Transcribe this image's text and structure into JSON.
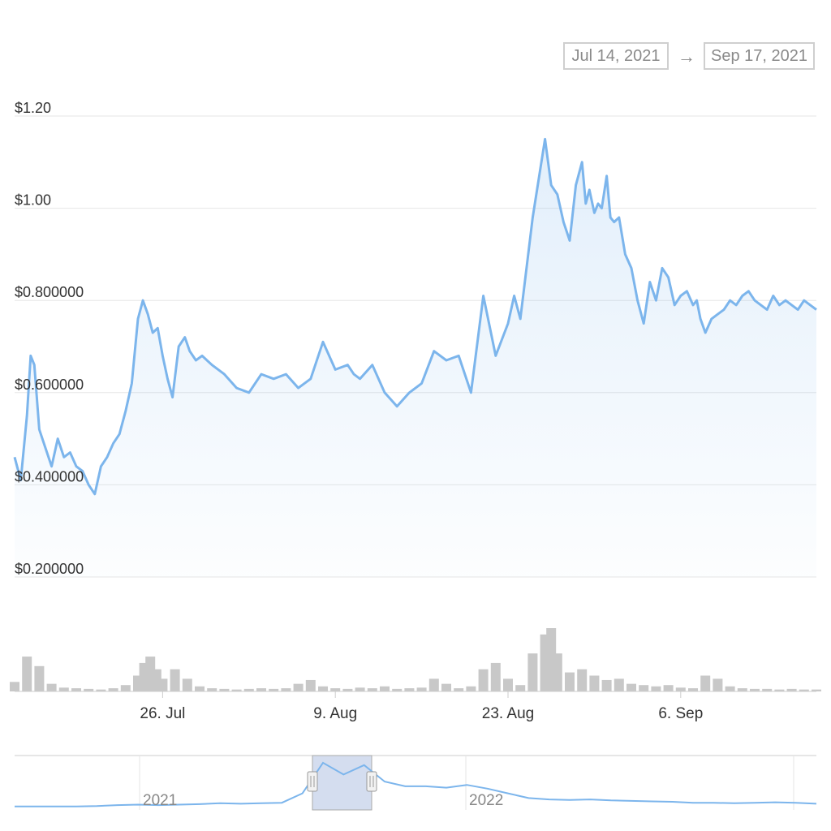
{
  "range": {
    "start": "Jul 14, 2021",
    "arrow": "→",
    "end": "Sep 17, 2021"
  },
  "colors": {
    "line": "#7cb5ec",
    "grid": "#e6e6e6",
    "volume": "#c8c8c8",
    "navigator_mask": "#c6d2ea",
    "text": "#333333",
    "muted": "#888888"
  },
  "chart_data": {
    "type": "line",
    "title": "",
    "xlabel": "",
    "ylabel": "",
    "y_ticks": [
      "$0.200000",
      "$0.400000",
      "$0.600000",
      "$0.800000",
      "$1.00",
      "$1.20"
    ],
    "y_tick_values": [
      0.2,
      0.4,
      0.6,
      0.8,
      1.0,
      1.2
    ],
    "ylim": [
      0.2,
      1.2
    ],
    "x_ticks": [
      "26. Jul",
      "9. Aug",
      "23. Aug",
      "6. Sep"
    ],
    "x_tick_days": [
      12,
      26,
      40,
      54
    ],
    "xlim_days_from_Jul_14": [
      0,
      65
    ],
    "grid": true,
    "series": [
      {
        "name": "",
        "x_day": [
          0,
          0.5,
          1,
          1.3,
          1.6,
          2,
          2.5,
          3,
          3.5,
          4,
          4.5,
          5,
          5.5,
          6,
          6.5,
          7,
          7.5,
          8,
          8.5,
          9,
          9.5,
          10,
          10.4,
          10.8,
          11.2,
          11.6,
          12,
          12.4,
          12.8,
          13.3,
          13.8,
          14.2,
          14.7,
          15.2,
          16,
          17,
          18,
          19,
          20,
          21,
          22,
          23,
          24,
          25,
          26,
          27,
          27.5,
          28,
          29,
          30,
          31,
          32,
          33,
          34,
          35,
          36,
          37,
          38,
          39,
          40,
          40.5,
          41,
          42,
          43,
          43.5,
          44,
          44.5,
          45,
          45.5,
          46,
          46.3,
          46.6,
          47,
          47.3,
          47.6,
          48,
          48.3,
          48.6,
          49,
          49.5,
          50,
          50.5,
          51,
          51.5,
          52,
          52.5,
          53,
          53.5,
          54,
          54.5,
          55,
          55.3,
          55.6,
          56,
          56.5,
          57,
          57.5,
          58,
          58.5,
          59,
          59.5,
          60,
          60.5,
          61,
          61.5,
          62,
          62.5,
          63,
          63.5,
          64,
          64.5,
          65
        ],
        "values": [
          0.46,
          0.41,
          0.55,
          0.68,
          0.66,
          0.52,
          0.48,
          0.44,
          0.5,
          0.46,
          0.47,
          0.44,
          0.43,
          0.4,
          0.38,
          0.44,
          0.46,
          0.49,
          0.51,
          0.56,
          0.62,
          0.76,
          0.8,
          0.77,
          0.73,
          0.74,
          0.68,
          0.63,
          0.59,
          0.7,
          0.72,
          0.69,
          0.67,
          0.68,
          0.66,
          0.64,
          0.61,
          0.6,
          0.64,
          0.63,
          0.64,
          0.61,
          0.63,
          0.71,
          0.65,
          0.66,
          0.64,
          0.63,
          0.66,
          0.6,
          0.57,
          0.6,
          0.62,
          0.69,
          0.67,
          0.68,
          0.6,
          0.81,
          0.68,
          0.75,
          0.81,
          0.76,
          0.98,
          1.15,
          1.05,
          1.03,
          0.97,
          0.93,
          1.05,
          1.1,
          1.01,
          1.04,
          0.99,
          1.01,
          1.0,
          1.07,
          0.98,
          0.97,
          0.98,
          0.9,
          0.87,
          0.8,
          0.75,
          0.84,
          0.8,
          0.87,
          0.85,
          0.79,
          0.81,
          0.82,
          0.79,
          0.8,
          0.76,
          0.73,
          0.76,
          0.77,
          0.78,
          0.8,
          0.79,
          0.81,
          0.82,
          0.8,
          0.79,
          0.78,
          0.81,
          0.79,
          0.8,
          0.79,
          0.78,
          0.8,
          0.79,
          0.78
        ]
      }
    ],
    "volume": {
      "x_day": [
        0,
        1,
        2,
        3,
        4,
        5,
        6,
        7,
        8,
        9,
        10,
        10.5,
        11,
        11.5,
        12,
        13,
        14,
        15,
        16,
        17,
        18,
        19,
        20,
        21,
        22,
        23,
        24,
        25,
        26,
        27,
        28,
        29,
        30,
        31,
        32,
        33,
        34,
        35,
        36,
        37,
        38,
        39,
        40,
        41,
        42,
        43,
        43.5,
        44,
        45,
        46,
        47,
        48,
        49,
        50,
        51,
        52,
        53,
        54,
        55,
        56,
        57,
        58,
        59,
        60,
        61,
        62,
        63,
        64,
        65
      ],
      "values": [
        0.15,
        0.55,
        0.4,
        0.12,
        0.06,
        0.05,
        0.04,
        0.03,
        0.05,
        0.1,
        0.25,
        0.45,
        0.55,
        0.35,
        0.2,
        0.35,
        0.2,
        0.08,
        0.05,
        0.04,
        0.03,
        0.04,
        0.05,
        0.04,
        0.05,
        0.12,
        0.18,
        0.08,
        0.05,
        0.04,
        0.06,
        0.05,
        0.08,
        0.04,
        0.05,
        0.06,
        0.2,
        0.12,
        0.05,
        0.08,
        0.35,
        0.45,
        0.2,
        0.1,
        0.6,
        0.9,
        1.0,
        0.6,
        0.3,
        0.35,
        0.25,
        0.18,
        0.2,
        0.12,
        0.1,
        0.08,
        0.1,
        0.06,
        0.05,
        0.25,
        0.2,
        0.08,
        0.05,
        0.04,
        0.04,
        0.03,
        0.04,
        0.03,
        0.03
      ]
    },
    "navigator": {
      "labels": [
        "2021",
        "2022"
      ],
      "values": [
        0.02,
        0.02,
        0.02,
        0.02,
        0.03,
        0.05,
        0.06,
        0.05,
        0.06,
        0.07,
        0.09,
        0.08,
        0.09,
        0.1,
        0.3,
        0.95,
        0.7,
        0.9,
        0.55,
        0.45,
        0.45,
        0.42,
        0.48,
        0.4,
        0.3,
        0.2,
        0.17,
        0.16,
        0.17,
        0.15,
        0.14,
        0.13,
        0.12,
        0.1,
        0.1,
        0.09,
        0.1,
        0.11,
        0.1,
        0.08
      ]
    }
  }
}
